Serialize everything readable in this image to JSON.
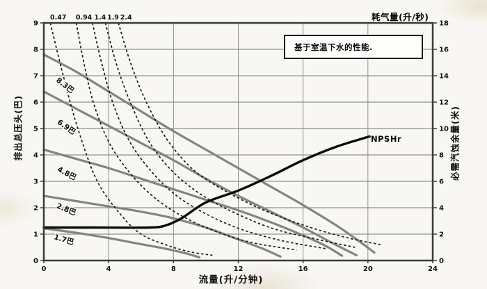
{
  "chart_data": {
    "type": "line",
    "title": "",
    "xlabel": "流量(升/分钟)",
    "ylabel_left": "排出总压头(巴)",
    "ylabel_right": "必需汽蚀余量(米)",
    "air_axis_label": "耗气量(升/秒)",
    "note": "基于室温下水的性能.",
    "xlim": [
      0,
      24
    ],
    "ylim_left": [
      0,
      9
    ],
    "ylim_right": [
      0,
      18
    ],
    "x_ticks": [
      0,
      4,
      8,
      12,
      16,
      20,
      24
    ],
    "y_left_ticks": [
      0,
      1,
      2,
      3,
      4,
      5,
      6,
      7,
      8,
      9
    ],
    "y_right_ticks": [
      0,
      2,
      4,
      6,
      8,
      10,
      12,
      14,
      16,
      18
    ],
    "grid": true,
    "legend_position": "none",
    "colors": {
      "pressure_curve": "#848484",
      "air_curve": "#1b1b1b",
      "npshr": "#0b0b0b",
      "grid": "#8e8e8e",
      "border": "#3a3a3a",
      "text": "#101010"
    },
    "pressure_curves": [
      {
        "label": "8.3巴",
        "label_at": [
          0.73,
          6.8,
          38
        ],
        "points": [
          [
            0,
            7.8
          ],
          [
            2,
            7.15
          ],
          [
            4,
            6.4
          ],
          [
            6,
            5.65
          ],
          [
            8,
            4.9
          ],
          [
            10,
            4.2
          ],
          [
            12,
            3.5
          ],
          [
            14,
            2.8
          ],
          [
            16,
            2.1
          ],
          [
            18,
            1.35
          ],
          [
            19.3,
            0.8
          ],
          [
            20.4,
            0.3
          ]
        ]
      },
      {
        "label": "6.9巴",
        "label_at": [
          0.8,
          5.2,
          35
        ],
        "points": [
          [
            0,
            6.4
          ],
          [
            2,
            5.75
          ],
          [
            4,
            5.1
          ],
          [
            6,
            4.45
          ],
          [
            8,
            3.8
          ],
          [
            10,
            3.1
          ],
          [
            12,
            2.45
          ],
          [
            14,
            1.85
          ],
          [
            16,
            1.25
          ],
          [
            18,
            0.6
          ],
          [
            19.3,
            0.2
          ]
        ]
      },
      {
        "label": "4.8巴",
        "label_at": [
          0.8,
          3.4,
          28
        ],
        "points": [
          [
            0,
            4.2
          ],
          [
            2,
            3.85
          ],
          [
            4,
            3.5
          ],
          [
            6,
            3.1
          ],
          [
            8,
            2.7
          ],
          [
            10,
            2.3
          ],
          [
            12,
            1.9
          ],
          [
            14,
            1.45
          ],
          [
            16,
            0.95
          ],
          [
            17.4,
            0.55
          ],
          [
            18.4,
            0.18
          ]
        ]
      },
      {
        "label": "2.8巴",
        "label_at": [
          0.75,
          2.0,
          22
        ],
        "points": [
          [
            0,
            2.45
          ],
          [
            2,
            2.25
          ],
          [
            4,
            2.05
          ],
          [
            6,
            1.85
          ],
          [
            8,
            1.6
          ],
          [
            10,
            1.25
          ],
          [
            12,
            0.8
          ],
          [
            13.5,
            0.45
          ],
          [
            14.6,
            0.15
          ]
        ]
      },
      {
        "label": "1.7巴",
        "label_at": [
          0.6,
          0.82,
          17
        ],
        "points": [
          [
            0,
            1.22
          ],
          [
            2,
            1.05
          ],
          [
            4,
            0.85
          ],
          [
            6,
            0.62
          ],
          [
            7.5,
            0.45
          ],
          [
            8.7,
            0.28
          ],
          [
            9.6,
            0.12
          ]
        ]
      }
    ],
    "air_curves": [
      {
        "label": "0.47",
        "label_flow": 0.42,
        "points": [
          [
            0.4,
            9.0
          ],
          [
            1.2,
            7.0
          ],
          [
            2.1,
            5.0
          ],
          [
            3.3,
            3.0
          ],
          [
            4.8,
            1.7
          ],
          [
            6.0,
            1.0
          ],
          [
            7.5,
            0.6
          ],
          [
            9.0,
            0.33
          ],
          [
            10.4,
            0.2
          ]
        ]
      },
      {
        "label": "0.94",
        "label_flow": 2.0,
        "points": [
          [
            2.0,
            9.0
          ],
          [
            2.5,
            7.4
          ],
          [
            3.1,
            5.9
          ],
          [
            4.0,
            4.5
          ],
          [
            5.2,
            3.4
          ],
          [
            6.6,
            2.5
          ],
          [
            8.2,
            1.8
          ],
          [
            10.2,
            1.2
          ],
          [
            12.7,
            0.7
          ],
          [
            15.6,
            0.4
          ]
        ]
      },
      {
        "label": "1.4",
        "label_flow": 3.0,
        "points": [
          [
            3.0,
            9.0
          ],
          [
            3.6,
            7.4
          ],
          [
            4.3,
            5.9
          ],
          [
            5.3,
            4.5
          ],
          [
            6.6,
            3.4
          ],
          [
            8.1,
            2.5
          ],
          [
            9.9,
            1.8
          ],
          [
            12.1,
            1.2
          ],
          [
            14.7,
            0.75
          ],
          [
            17.4,
            0.45
          ]
        ]
      },
      {
        "label": "1.9",
        "label_flow": 3.8,
        "points": [
          [
            3.8,
            9.0
          ],
          [
            4.5,
            7.4
          ],
          [
            5.4,
            5.9
          ],
          [
            6.5,
            4.5
          ],
          [
            7.9,
            3.4
          ],
          [
            9.7,
            2.5
          ],
          [
            11.8,
            1.8
          ],
          [
            14.2,
            1.2
          ],
          [
            16.9,
            0.8
          ],
          [
            19.2,
            0.5
          ]
        ]
      },
      {
        "label": "2.4",
        "label_flow": 4.6,
        "points": [
          [
            4.6,
            9.0
          ],
          [
            5.4,
            7.4
          ],
          [
            6.4,
            5.9
          ],
          [
            7.7,
            4.5
          ],
          [
            9.3,
            3.4
          ],
          [
            11.3,
            2.6
          ],
          [
            13.6,
            1.9
          ],
          [
            16.2,
            1.3
          ],
          [
            18.8,
            0.85
          ],
          [
            20.8,
            0.6
          ]
        ]
      }
    ],
    "npshr_curve": {
      "label": "NPSHr",
      "units": "米",
      "points_m": [
        [
          0,
          2.5
        ],
        [
          3,
          2.5
        ],
        [
          6.5,
          2.5
        ],
        [
          7.5,
          2.65
        ],
        [
          8.5,
          3.2
        ],
        [
          10,
          4.4
        ],
        [
          12,
          5.3
        ],
        [
          14,
          6.4
        ],
        [
          16,
          7.6
        ],
        [
          18,
          8.6
        ],
        [
          20.1,
          9.4
        ]
      ]
    }
  }
}
